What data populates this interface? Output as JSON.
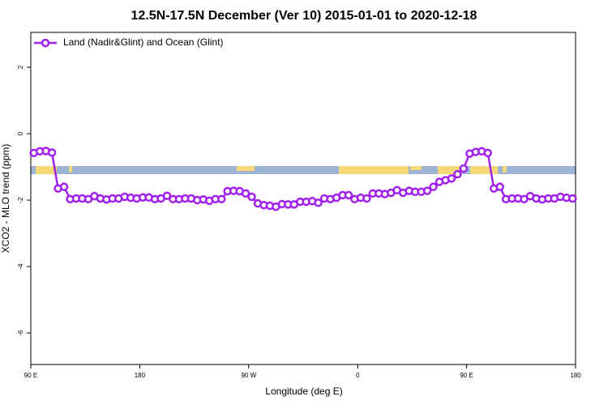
{
  "chart_data": {
    "type": "line",
    "title": "12.5N-17.5N December (Ver 10)   2015-01-01 to 2020-12-18",
    "xlabel": "Longitude (deg E)",
    "ylabel": "XCO2 - MLO trend (ppm)",
    "xlim": [
      90,
      540
    ],
    "ylim": [
      -6.95,
      3.05
    ],
    "xticks": [
      {
        "value": 90,
        "label": "90 E"
      },
      180,
      {
        "value": 270,
        "label": "90 W"
      },
      {
        "value": 360,
        "label": "0"
      },
      {
        "value": 450,
        "label": "90 E"
      },
      {
        "value": 540,
        "label": "180"
      }
    ],
    "yticks": [
      -6,
      -4,
      -2,
      0,
      2
    ],
    "legend": "upper left",
    "x": [
      92.5,
      97.5,
      102.5,
      107.5,
      112.5,
      117.5,
      122.5,
      127.5,
      132.5,
      137.5,
      142.5,
      147.5,
      152.5,
      157.5,
      162.5,
      167.5,
      172.5,
      177.5,
      182.5,
      187.5,
      192.5,
      197.5,
      202.5,
      207.5,
      212.5,
      217.5,
      222.5,
      227.5,
      232.5,
      237.5,
      242.5,
      247.5,
      252.5,
      257.5,
      262.5,
      267.5,
      272.5,
      277.5,
      282.5,
      287.5,
      292.5,
      297.5,
      302.5,
      307.5,
      312.5,
      317.5,
      322.5,
      327.5,
      332.5,
      337.5,
      342.5,
      347.5,
      352.5,
      357.5,
      362.5,
      367.5,
      372.5,
      377.5,
      382.5,
      387.5,
      392.5,
      397.5,
      402.5,
      407.5,
      412.5,
      417.5,
      422.5,
      427.5,
      432.5,
      437.5,
      442.5,
      447.5,
      452.5,
      457.5,
      462.5,
      467.5,
      472.5,
      477.5,
      482.5,
      487.5,
      492.5,
      497.5,
      502.5,
      507.5,
      512.5,
      517.5,
      522.5,
      527.5,
      532.5,
      537.5
    ],
    "series": [
      {
        "name": "Land (Nadir&Glint) and Ocean (Glint)",
        "color": "#a020f0",
        "values": [
          -0.58,
          -0.53,
          -0.52,
          -0.57,
          -1.65,
          -1.6,
          -1.97,
          -1.95,
          -1.95,
          -1.97,
          -1.88,
          -1.95,
          -1.98,
          -1.95,
          -1.95,
          -1.9,
          -1.93,
          -1.95,
          -1.92,
          -1.92,
          -1.97,
          -1.95,
          -1.87,
          -1.97,
          -1.97,
          -1.95,
          -1.95,
          -2.0,
          -1.98,
          -2.02,
          -1.97,
          -1.97,
          -1.73,
          -1.72,
          -1.73,
          -1.8,
          -1.9,
          -2.1,
          -2.15,
          -2.17,
          -2.2,
          -2.12,
          -2.13,
          -2.13,
          -2.05,
          -2.05,
          -2.03,
          -2.08,
          -1.95,
          -1.97,
          -1.93,
          -1.85,
          -1.85,
          -1.97,
          -1.93,
          -1.95,
          -1.8,
          -1.8,
          -1.82,
          -1.78,
          -1.7,
          -1.78,
          -1.72,
          -1.75,
          -1.75,
          -1.72,
          -1.6,
          -1.45,
          -1.4,
          -1.35,
          -1.22,
          -1.05,
          -0.6,
          -0.55,
          -0.53,
          -0.58,
          -1.65,
          -1.6,
          -1.97,
          -1.95,
          -1.95,
          -1.97,
          -1.88,
          -1.95,
          -1.98,
          -1.95,
          -1.95,
          -1.9,
          -1.93,
          -1.95
        ]
      }
    ]
  }
}
